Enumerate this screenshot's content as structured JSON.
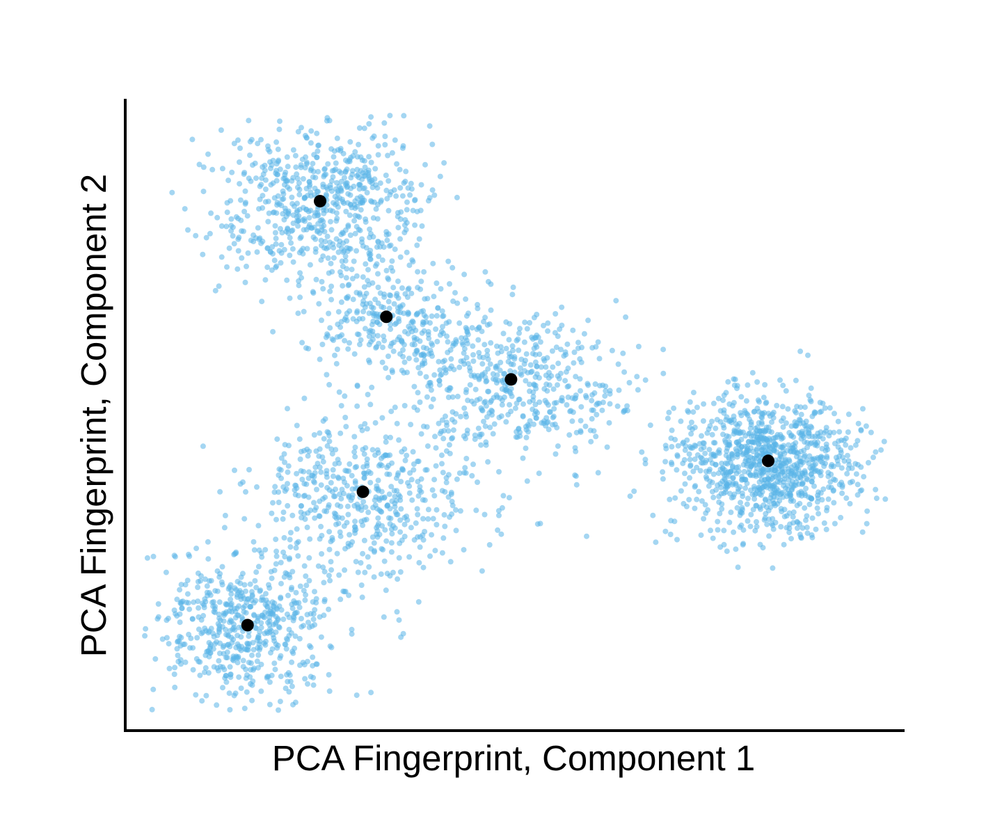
{
  "chart_data": {
    "type": "scatter",
    "title": "",
    "xlabel": "PCA Fingerprint, Component 1",
    "ylabel": "PCA Fingerprint, Component 2",
    "xlim": [
      0,
      1
    ],
    "ylim": [
      0,
      1
    ],
    "grid": false,
    "ticks": false,
    "legend": "none",
    "colors": {
      "points": "#5ab4e8",
      "points_opacity": 0.55,
      "centroids": "#000000",
      "axes": "#000000"
    },
    "clusters": [
      {
        "cx": 0.25,
        "cy": 0.84,
        "sx": 0.068,
        "sy": 0.068,
        "n": 650,
        "angle": -0.3
      },
      {
        "cx": 0.335,
        "cy": 0.655,
        "sx": 0.055,
        "sy": 0.045,
        "n": 260,
        "angle": -0.35
      },
      {
        "cx": 0.495,
        "cy": 0.555,
        "sx": 0.085,
        "sy": 0.058,
        "n": 520,
        "angle": -0.45
      },
      {
        "cx": 0.305,
        "cy": 0.375,
        "sx": 0.072,
        "sy": 0.072,
        "n": 520,
        "angle": 0.35
      },
      {
        "cx": 0.155,
        "cy": 0.165,
        "sx": 0.055,
        "sy": 0.058,
        "n": 560,
        "angle": 0.0
      },
      {
        "cx": 0.825,
        "cy": 0.425,
        "sx": 0.058,
        "sy": 0.055,
        "n": 1000,
        "angle": 0.05
      }
    ],
    "centroids": [
      {
        "x": 0.25,
        "y": 0.838
      },
      {
        "x": 0.335,
        "y": 0.655
      },
      {
        "x": 0.495,
        "y": 0.556
      },
      {
        "x": 0.305,
        "y": 0.378
      },
      {
        "x": 0.157,
        "y": 0.167
      },
      {
        "x": 0.825,
        "y": 0.427
      }
    ]
  }
}
